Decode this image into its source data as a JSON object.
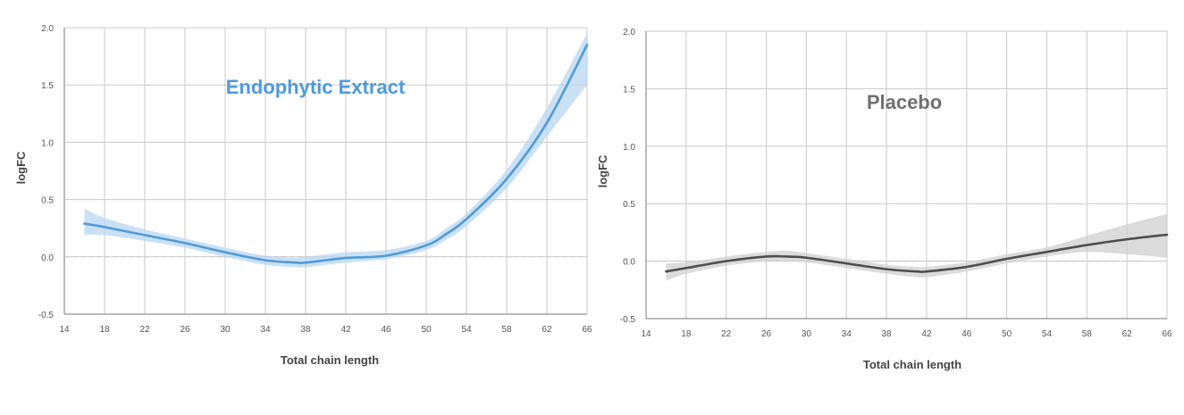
{
  "chart_data": [
    {
      "type": "line",
      "title": "Endophytic Extract",
      "xlabel": "Total chain length",
      "ylabel": "logFC",
      "xlim": [
        14,
        66
      ],
      "ylim": [
        -0.5,
        2.0
      ],
      "x_ticks": [
        "14",
        "18",
        "22",
        "26",
        "30",
        "34",
        "38",
        "42",
        "46",
        "50",
        "54",
        "58",
        "62",
        "66"
      ],
      "y_ticks": [
        "-0.5",
        "0.0",
        "0.5",
        "1.0",
        "1.5",
        "2.0"
      ],
      "grid": true,
      "reference_line_y": 0,
      "color": "#4f9bd9",
      "band_color": "#b8d6f0",
      "series": [
        {
          "x": [
            16,
            18,
            22,
            26,
            30,
            34,
            37,
            38,
            42,
            46,
            50,
            52,
            54,
            58,
            62,
            66
          ],
          "y": [
            0.29,
            0.26,
            0.19,
            0.12,
            0.04,
            -0.03,
            -0.05,
            -0.05,
            -0.01,
            0.01,
            0.1,
            0.2,
            0.33,
            0.68,
            1.17,
            1.85
          ],
          "lower": [
            0.19,
            0.19,
            0.14,
            0.08,
            0.0,
            -0.07,
            -0.09,
            -0.09,
            -0.05,
            -0.02,
            0.06,
            0.15,
            0.27,
            0.6,
            1.05,
            1.5
          ],
          "upper": [
            0.42,
            0.34,
            0.24,
            0.16,
            0.08,
            0.01,
            -0.01,
            0.0,
            0.04,
            0.06,
            0.14,
            0.25,
            0.38,
            0.76,
            1.3,
            1.95
          ]
        }
      ]
    },
    {
      "type": "line",
      "title": "Placebo",
      "xlabel": "Total chain length",
      "ylabel": "logFC",
      "xlim": [
        14,
        66
      ],
      "ylim": [
        -0.5,
        2.0
      ],
      "x_ticks": [
        "14",
        "18",
        "22",
        "26",
        "30",
        "34",
        "38",
        "42",
        "46",
        "50",
        "54",
        "58",
        "62",
        "66"
      ],
      "y_ticks": [
        "-0.5",
        "0.0",
        "0.5",
        "1.0",
        "1.5",
        "2.0"
      ],
      "grid": true,
      "reference_line_y": 0,
      "color": "#4d4d4d",
      "band_color": "#cfcfcf",
      "series": [
        {
          "x": [
            16,
            18,
            22,
            26,
            28,
            30,
            34,
            38,
            41,
            42,
            46,
            50,
            54,
            58,
            62,
            66
          ],
          "y": [
            -0.09,
            -0.06,
            0.0,
            0.04,
            0.04,
            0.03,
            -0.02,
            -0.07,
            -0.09,
            -0.09,
            -0.05,
            0.02,
            0.08,
            0.14,
            0.19,
            0.23
          ],
          "lower": [
            -0.17,
            -0.11,
            -0.04,
            0.0,
            0.0,
            -0.01,
            -0.06,
            -0.11,
            -0.14,
            -0.14,
            -0.09,
            -0.02,
            0.04,
            0.08,
            0.06,
            0.03
          ],
          "upper": [
            -0.02,
            -0.01,
            0.04,
            0.08,
            0.09,
            0.07,
            0.02,
            -0.03,
            -0.05,
            -0.05,
            -0.01,
            0.06,
            0.12,
            0.22,
            0.32,
            0.41
          ]
        }
      ]
    }
  ]
}
